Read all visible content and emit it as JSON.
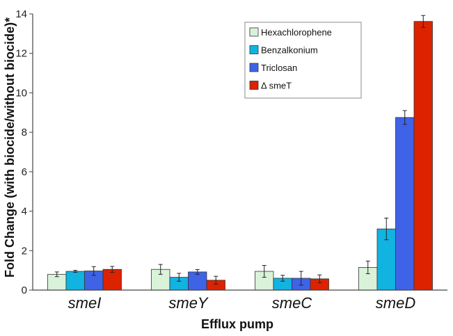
{
  "chart_data": {
    "type": "bar",
    "title": "",
    "xlabel": "Efflux pump",
    "ylabel": "Fold Change (with biocide/without biocide)*",
    "ylim": [
      0,
      14
    ],
    "yticks": [
      0,
      2,
      4,
      6,
      8,
      10,
      12,
      14
    ],
    "categories": [
      "smeI",
      "smeY",
      "smeC",
      "smeD"
    ],
    "series": [
      {
        "name": "Hexachlorophene",
        "color": "#d9f2d9",
        "values": [
          0.8,
          1.05,
          0.95,
          1.15
        ],
        "errors": [
          0.12,
          0.25,
          0.3,
          0.32
        ]
      },
      {
        "name": "Benzalkonium",
        "color": "#11b3e0",
        "values": [
          0.95,
          0.65,
          0.6,
          3.1
        ],
        "errors": [
          0.05,
          0.2,
          0.15,
          0.55
        ]
      },
      {
        "name": "Triclosan",
        "color": "#3f63e6",
        "values": [
          0.97,
          0.92,
          0.6,
          8.75
        ],
        "errors": [
          0.22,
          0.12,
          0.35,
          0.35
        ]
      },
      {
        "name": "Δ smeT",
        "color": "#dd2200",
        "values": [
          1.05,
          0.5,
          0.57,
          13.62
        ],
        "errors": [
          0.15,
          0.2,
          0.2,
          0.3
        ]
      }
    ],
    "legend": "top-right",
    "grid": false
  }
}
